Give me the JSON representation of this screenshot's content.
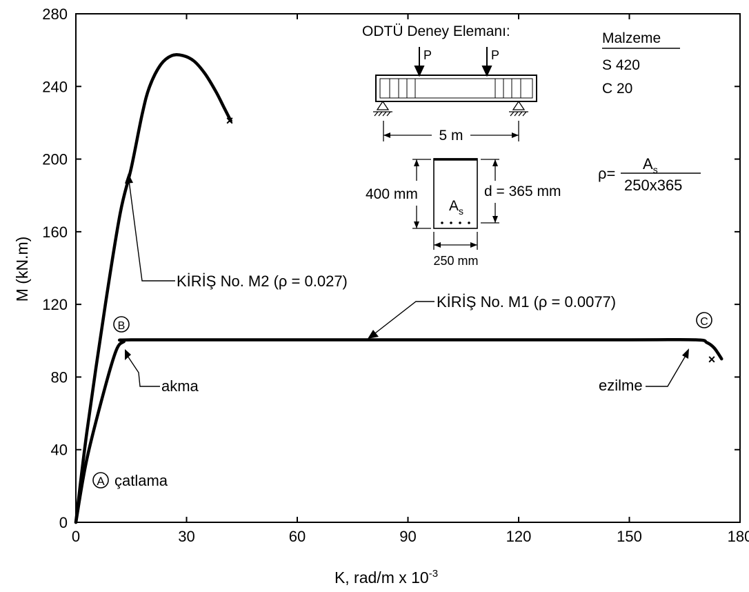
{
  "chart_data": {
    "type": "line",
    "xlabel": "K, rad/m x 10",
    "xlabel_sup": "-3",
    "ylabel": "M (kN.m)",
    "xlim": [
      0,
      180
    ],
    "ylim": [
      0,
      280
    ],
    "x_ticks": [
      0,
      30,
      60,
      90,
      120,
      150,
      180
    ],
    "y_ticks": [
      0,
      40,
      80,
      120,
      160,
      200,
      240,
      280
    ],
    "series": [
      {
        "name": "KİRİŞ No. M2 (ρ = 0.027)",
        "x": [
          0,
          3,
          8,
          12,
          15,
          18,
          20,
          23,
          26,
          29,
          32,
          35,
          38,
          40,
          42
        ],
        "y": [
          0,
          50,
          120,
          170,
          195,
          225,
          240,
          252,
          257,
          257,
          254,
          247,
          237,
          229,
          221
        ]
      },
      {
        "name": "KİRİŞ No. M1 (ρ = 0.0077)",
        "x": [
          0,
          3,
          8,
          11,
          13,
          15,
          50,
          100,
          150,
          168,
          171,
          173,
          175
        ],
        "y": [
          0,
          35,
          75,
          95,
          99.5,
          100.5,
          100.5,
          100.5,
          100.5,
          100.5,
          99,
          96,
          90
        ]
      }
    ],
    "annotations": {
      "point_a": "A",
      "point_b": "B",
      "point_c": "C",
      "catlama": "çatlama",
      "akma": "akma",
      "ezilme": "ezilme",
      "m2_label": "KİRİŞ No. M2 (ρ = 0.027)",
      "m1_label": "KİRİŞ No. M1 (ρ = 0.0077)"
    },
    "inset": {
      "title": "ODTÜ Deney Elemanı:",
      "load_label": "P",
      "span": "5 m",
      "height": "400 mm",
      "depth": "d = 365 mm",
      "width": "250 mm",
      "steel": "A",
      "steel_sub": "s"
    },
    "material": {
      "heading": "Malzeme",
      "steel": "S 420",
      "concrete": "C 20"
    },
    "formula": {
      "lhs": "ρ=",
      "numerator": "A",
      "numerator_sub": "s",
      "denominator": "250x365"
    }
  }
}
